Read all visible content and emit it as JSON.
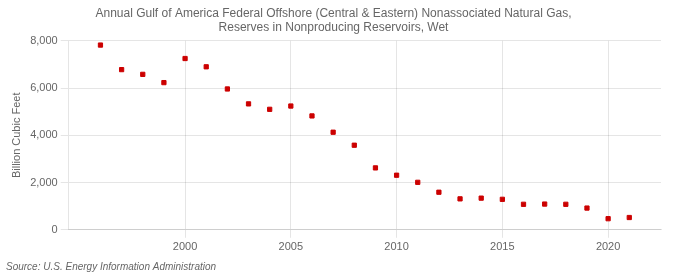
{
  "chart_data": {
    "type": "scatter",
    "title": [
      "Annual Gulf of America Federal Offshore (Central & Eastern) Nonassociated Natural Gas,",
      "Reserves in Nonproducing Reservoirs, Wet"
    ],
    "y_label": "Billion Cubic Feet",
    "annotation": "Source: U.S. Energy Information Administration",
    "x": [
      1996,
      1997,
      1998,
      1999,
      2000,
      2001,
      2002,
      2003,
      2004,
      2005,
      2006,
      2007,
      2008,
      2009,
      2010,
      2011,
      2012,
      2013,
      2014,
      2015,
      2016,
      2017,
      2018,
      2019,
      2020,
      2021
    ],
    "values": [
      7820,
      6780,
      6580,
      6230,
      7250,
      6900,
      5960,
      5330,
      5100,
      5240,
      4820,
      4130,
      3580,
      2620,
      2310,
      2010,
      1590,
      1310,
      1340,
      1290,
      1080,
      1090,
      1080,
      920,
      470,
      520
    ],
    "color": "#cc0000",
    "marker": "square",
    "xlim": [
      1994.5,
      2022.5
    ],
    "xticks": [
      2000,
      2005,
      2010,
      2015,
      2020
    ],
    "ylim": [
      0,
      8000
    ],
    "yticks": [
      0,
      {
        "value": 2000,
        "label": "2,000"
      },
      {
        "value": 4000,
        "label": "4,000"
      },
      {
        "value": 6000,
        "label": "6,000"
      },
      {
        "value": 8000,
        "label": "8,000"
      }
    ],
    "grid": true
  }
}
